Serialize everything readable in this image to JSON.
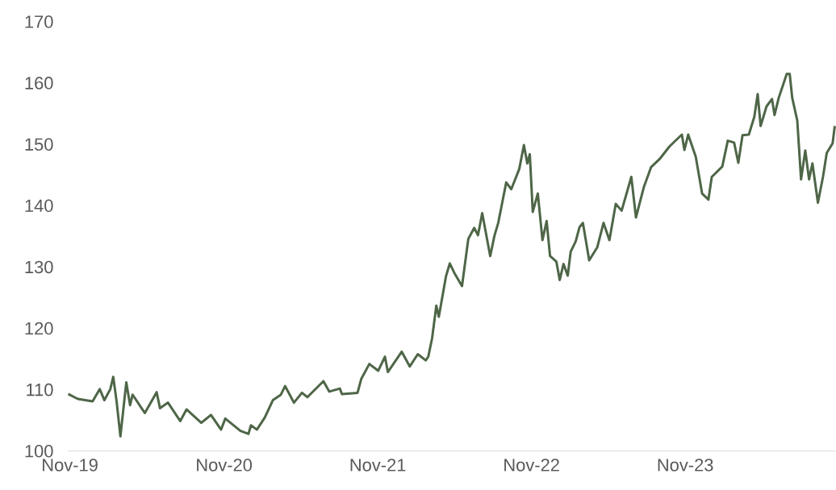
{
  "chart_data": {
    "type": "line",
    "color": "#4e6647",
    "marker": "none",
    "line_style": "solid",
    "x": [
      "2019-10-28",
      "2019-11-20",
      "2019-12-25",
      "2020-01-11",
      "2020-01-22",
      "2020-02-05",
      "2020-02-12",
      "2020-02-20",
      "2020-02-29",
      "2020-03-14",
      "2020-03-23",
      "2020-03-29",
      "2020-04-27",
      "2020-05-25",
      "2020-06-02",
      "2020-06-21",
      "2020-07-20",
      "2020-08-04",
      "2020-09-08",
      "2020-10-01",
      "2020-10-25",
      "2020-11-04",
      "2020-12-10",
      "2020-12-29",
      "2021-01-04",
      "2021-01-18",
      "2021-02-06",
      "2021-02-25",
      "2021-03-16",
      "2021-03-26",
      "2021-04-16",
      "2021-05-05",
      "2021-05-18",
      "2021-06-25",
      "2021-07-09",
      "2021-08-03",
      "2021-08-08",
      "2021-09-14",
      "2021-09-23",
      "2021-10-12",
      "2021-11-02",
      "2021-11-18",
      "2021-11-25",
      "2021-12-28",
      "2022-01-16",
      "2022-02-04",
      "2022-02-23",
      "2022-03-01",
      "2022-03-10",
      "2022-03-20",
      "2022-03-26",
      "2022-04-12",
      "2022-04-21",
      "2022-05-03",
      "2022-05-20",
      "2022-06-04",
      "2022-06-18",
      "2022-06-27",
      "2022-07-07",
      "2022-07-26",
      "2022-08-05",
      "2022-08-14",
      "2022-09-02",
      "2022-09-14",
      "2022-10-03",
      "2022-10-14",
      "2022-10-22",
      "2022-10-28",
      "2022-11-04",
      "2022-11-16",
      "2022-11-27",
      "2022-12-07",
      "2022-12-15",
      "2022-12-30",
      "2023-01-07",
      "2023-01-16",
      "2023-01-26",
      "2023-02-02",
      "2023-02-14",
      "2023-02-23",
      "2023-03-03",
      "2023-03-18",
      "2023-04-06",
      "2023-04-21",
      "2023-05-05",
      "2023-05-20",
      "2023-06-03",
      "2023-06-26",
      "2023-07-07",
      "2023-07-26",
      "2023-08-12",
      "2023-09-01",
      "2023-09-25",
      "2023-10-24",
      "2023-10-30",
      "2023-11-08",
      "2023-11-26",
      "2023-12-11",
      "2023-12-26",
      "2024-01-03",
      "2024-01-28",
      "2024-02-10",
      "2024-02-25",
      "2024-03-06",
      "2024-03-16",
      "2024-03-31",
      "2024-04-13",
      "2024-04-21",
      "2024-04-28",
      "2024-05-12",
      "2024-05-25",
      "2024-05-31",
      "2024-06-10",
      "2024-06-29",
      "2024-07-06",
      "2024-07-12",
      "2024-07-24",
      "2024-08-02",
      "2024-08-12",
      "2024-08-21",
      "2024-08-29",
      "2024-09-11",
      "2024-09-23",
      "2024-10-02",
      "2024-10-16",
      "2024-10-21"
    ],
    "values": [
      109.3,
      108.5,
      108.1,
      110.1,
      108.3,
      110.1,
      112.1,
      108.1,
      102.4,
      111.2,
      107.5,
      109.2,
      106.2,
      109.6,
      107.0,
      107.9,
      104.9,
      106.8,
      104.6,
      105.9,
      103.5,
      105.3,
      103.3,
      102.8,
      104.2,
      103.5,
      105.5,
      108.3,
      109.2,
      110.6,
      107.9,
      109.5,
      108.8,
      111.4,
      109.7,
      110.2,
      109.3,
      109.5,
      111.8,
      114.2,
      113.1,
      115.4,
      112.9,
      116.2,
      113.8,
      115.8,
      114.8,
      115.4,
      118.4,
      123.7,
      121.9,
      128.5,
      130.6,
      128.9,
      126.9,
      134.6,
      136.4,
      135.2,
      138.8,
      131.8,
      135.1,
      137.2,
      143.8,
      142.7,
      146.0,
      149.9,
      146.9,
      148.4,
      139.0,
      142.0,
      134.4,
      137.5,
      131.8,
      130.9,
      127.9,
      130.5,
      128.6,
      132.5,
      134.2,
      136.5,
      137.2,
      131.1,
      133.2,
      137.2,
      134.4,
      140.3,
      139.2,
      144.7,
      138.1,
      143.1,
      146.3,
      147.6,
      149.7,
      151.6,
      149.1,
      151.6,
      148.0,
      142.0,
      141.0,
      144.7,
      146.4,
      150.6,
      150.3,
      147.0,
      151.5,
      151.6,
      154.5,
      158.2,
      153.0,
      156.2,
      157.4,
      154.8,
      157.6,
      161.5,
      161.5,
      157.6,
      153.9,
      144.3,
      149.0,
      144.3,
      146.9,
      140.5,
      144.7,
      148.6,
      150.2,
      153.0
    ],
    "xlim": [
      "2019-10-27",
      "2024-10-23"
    ],
    "xticks": [
      {
        "value": "2019-11-01",
        "label": "Nov-19"
      },
      {
        "value": "2020-11-01",
        "label": "Nov-20"
      },
      {
        "value": "2021-11-01",
        "label": "Nov-21"
      },
      {
        "value": "2022-11-01",
        "label": "Nov-22"
      },
      {
        "value": "2023-11-01",
        "label": "Nov-23"
      }
    ],
    "ylim": [
      100,
      170
    ],
    "yticks": [
      100,
      110,
      120,
      130,
      140,
      150,
      160,
      170
    ]
  }
}
